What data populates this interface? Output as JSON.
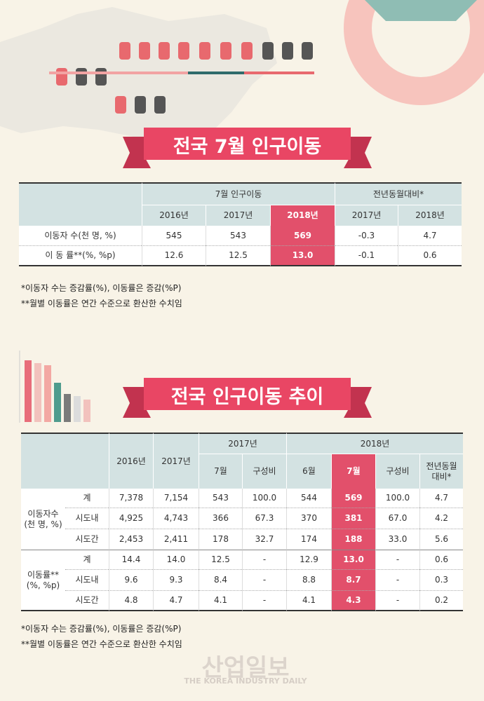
{
  "banner1": {
    "title": "전국 7월 인구이동"
  },
  "table1": {
    "groups": [
      "7월 인구이동",
      "전년동월대비*"
    ],
    "columns": [
      "2016년",
      "2017년",
      "2018년",
      "2017년",
      "2018년"
    ],
    "rows": [
      {
        "label": "이동자 수(천 명, %)",
        "cells": [
          "545",
          "543",
          "569",
          "-0.3",
          "4.7"
        ]
      },
      {
        "label": "이 동 률**(%, %p)",
        "cells": [
          "12.6",
          "12.5",
          "13.0",
          "-0.1",
          "0.6"
        ]
      }
    ]
  },
  "notes1": [
    "*이동자 수는 증감률(%), 이동률은 증감(%P)",
    "**월별 이동률은 연간 수준으로 환산한 수치임"
  ],
  "banner2": {
    "title": "전국 인구이동 추이"
  },
  "table2": {
    "years": [
      "2016년",
      "2017년"
    ],
    "groups": [
      "2017년",
      "2018년"
    ],
    "columns": [
      "7월",
      "구성비",
      "6월",
      "7월",
      "구성비",
      "전년동월대비*"
    ],
    "sections": [
      {
        "label": "이동자수 (천 명, %)",
        "rows": [
          {
            "label": "계",
            "cells": [
              "7,378",
              "7,154",
              "543",
              "100.0",
              "544",
              "569",
              "100.0",
              "4.7"
            ]
          },
          {
            "label": "시도내",
            "cells": [
              "4,925",
              "4,743",
              "366",
              "67.3",
              "370",
              "381",
              "67.0",
              "4.2"
            ]
          },
          {
            "label": "시도간",
            "cells": [
              "2,453",
              "2,411",
              "178",
              "32.7",
              "174",
              "188",
              "33.0",
              "5.6"
            ]
          }
        ]
      },
      {
        "label": "이동률** (%, %p)",
        "rows": [
          {
            "label": "계",
            "cells": [
              "14.4",
              "14.0",
              "12.5",
              "-",
              "12.9",
              "13.0",
              "-",
              "0.6"
            ]
          },
          {
            "label": "시도내",
            "cells": [
              "9.6",
              "9.3",
              "8.4",
              "-",
              "8.8",
              "8.7",
              "-",
              "0.3"
            ]
          },
          {
            "label": "시도간",
            "cells": [
              "4.8",
              "4.7",
              "4.1",
              "-",
              "4.1",
              "4.3",
              "-",
              "0.2"
            ]
          }
        ]
      }
    ]
  },
  "notes2": [
    "*이동자 수는 증감률(%), 이동률은 증감(%P)",
    "**월별 이동률은 연간 수준으로 환산한 수치임"
  ],
  "watermark": {
    "title": "산업일보",
    "subtitle": "THE KOREA INDUSTRY DAILY"
  }
}
